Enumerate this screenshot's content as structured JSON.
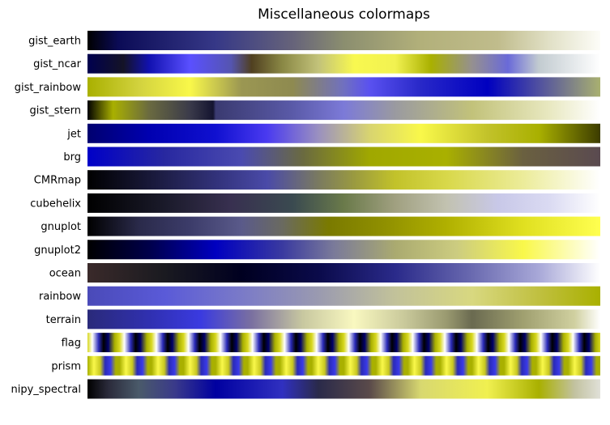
{
  "chart_data": {
    "type": "heatmap",
    "title": "Miscellaneous colormaps",
    "xlabel": "",
    "ylabel": "",
    "grid": false,
    "colormaps": [
      {
        "name": "gist_earth",
        "stops": [
          [
            0,
            "#000000"
          ],
          [
            0.06,
            "#0b0b56"
          ],
          [
            0.25,
            "#363887"
          ],
          [
            0.4,
            "#66637a"
          ],
          [
            0.5,
            "#8b8e6f"
          ],
          [
            0.65,
            "#b2b07a"
          ],
          [
            0.8,
            "#c0bc8c"
          ],
          [
            0.9,
            "#e1e0c6"
          ],
          [
            1,
            "#fdfdf8"
          ]
        ]
      },
      {
        "name": "gist_ncar",
        "stops": [
          [
            0,
            "#00004f"
          ],
          [
            0.07,
            "#141326"
          ],
          [
            0.12,
            "#1111b0"
          ],
          [
            0.2,
            "#5a50ff"
          ],
          [
            0.28,
            "#5555b0"
          ],
          [
            0.32,
            "#504020"
          ],
          [
            0.38,
            "#8a8845"
          ],
          [
            0.45,
            "#c2c27a"
          ],
          [
            0.52,
            "#f8f850"
          ],
          [
            0.6,
            "#f2f251"
          ],
          [
            0.67,
            "#a9b000"
          ],
          [
            0.75,
            "#959090"
          ],
          [
            0.82,
            "#6a6ad8"
          ],
          [
            0.88,
            "#c2cbd0"
          ],
          [
            1,
            "#ffffff"
          ]
        ]
      },
      {
        "name": "gist_rainbow",
        "stops": [
          [
            0,
            "#a9b000"
          ],
          [
            0.1,
            "#d2d23e"
          ],
          [
            0.2,
            "#f9f84a"
          ],
          [
            0.3,
            "#9b9752"
          ],
          [
            0.4,
            "#8e8a50"
          ],
          [
            0.5,
            "#7070c0"
          ],
          [
            0.55,
            "#5a51f0"
          ],
          [
            0.65,
            "#2828c8"
          ],
          [
            0.78,
            "#0000c0"
          ],
          [
            0.88,
            "#5050a0"
          ],
          [
            1,
            "#a9b070"
          ]
        ]
      },
      {
        "name": "gist_stern",
        "stops": [
          [
            0,
            "#000000"
          ],
          [
            0.05,
            "#a9b000"
          ],
          [
            0.12,
            "#6a6a40"
          ],
          [
            0.2,
            "#3a3a4a"
          ],
          [
            0.245,
            "#141430"
          ],
          [
            0.25,
            "#3a3a70"
          ],
          [
            0.4,
            "#5a5aa8"
          ],
          [
            0.5,
            "#7c7ad8"
          ],
          [
            0.6,
            "#9a9aa0"
          ],
          [
            0.75,
            "#c2c27a"
          ],
          [
            0.9,
            "#e8e8c0"
          ],
          [
            1,
            "#ffffff"
          ]
        ]
      },
      {
        "name": "jet",
        "stops": [
          [
            0,
            "#00006f"
          ],
          [
            0.12,
            "#0000b0"
          ],
          [
            0.25,
            "#1010d0"
          ],
          [
            0.35,
            "#4a3af0"
          ],
          [
            0.45,
            "#9a90c0"
          ],
          [
            0.55,
            "#d8d470"
          ],
          [
            0.65,
            "#f9f84a"
          ],
          [
            0.78,
            "#c2c22a"
          ],
          [
            0.88,
            "#a9b000"
          ],
          [
            1,
            "#3c3c00"
          ]
        ]
      },
      {
        "name": "brg",
        "stops": [
          [
            0,
            "#0000c8"
          ],
          [
            0.15,
            "#2828a0"
          ],
          [
            0.3,
            "#4a4ab0"
          ],
          [
            0.42,
            "#6a6a40"
          ],
          [
            0.55,
            "#a0a800"
          ],
          [
            0.7,
            "#a9b000"
          ],
          [
            0.85,
            "#6a6040"
          ],
          [
            1,
            "#5a4a50"
          ]
        ]
      },
      {
        "name": "CMRmap",
        "stops": [
          [
            0,
            "#000000"
          ],
          [
            0.12,
            "#181838"
          ],
          [
            0.25,
            "#32327a"
          ],
          [
            0.35,
            "#4a4aa8"
          ],
          [
            0.45,
            "#7a7a60"
          ],
          [
            0.52,
            "#9a9a40"
          ],
          [
            0.6,
            "#c2c22a"
          ],
          [
            0.7,
            "#d8d84a"
          ],
          [
            0.85,
            "#ecec9a"
          ],
          [
            1,
            "#ffffff"
          ]
        ]
      },
      {
        "name": "cubehelix",
        "stops": [
          [
            0,
            "#000000"
          ],
          [
            0.15,
            "#1a1a2a"
          ],
          [
            0.28,
            "#383050"
          ],
          [
            0.4,
            "#3a4a50"
          ],
          [
            0.5,
            "#6a7a4a"
          ],
          [
            0.6,
            "#a0a080"
          ],
          [
            0.7,
            "#c2c2b0"
          ],
          [
            0.8,
            "#c8c8e8"
          ],
          [
            0.9,
            "#dadaf2"
          ],
          [
            1,
            "#ffffff"
          ]
        ]
      },
      {
        "name": "gnuplot",
        "stops": [
          [
            0,
            "#000000"
          ],
          [
            0.1,
            "#2a2a4a"
          ],
          [
            0.2,
            "#3c3c6a"
          ],
          [
            0.3,
            "#5a5a8a"
          ],
          [
            0.38,
            "#6a6a60"
          ],
          [
            0.47,
            "#7a7a00"
          ],
          [
            0.58,
            "#909000"
          ],
          [
            0.7,
            "#b0b000"
          ],
          [
            0.85,
            "#e0e020"
          ],
          [
            1,
            "#ffff50"
          ]
        ]
      },
      {
        "name": "gnuplot2",
        "stops": [
          [
            0,
            "#000000"
          ],
          [
            0.12,
            "#00004a"
          ],
          [
            0.25,
            "#0000c0"
          ],
          [
            0.38,
            "#3a3aa0"
          ],
          [
            0.48,
            "#7a7a9a"
          ],
          [
            0.6,
            "#aaaa70"
          ],
          [
            0.72,
            "#cccc80"
          ],
          [
            0.85,
            "#f9f84a"
          ],
          [
            1,
            "#ffffff"
          ]
        ]
      },
      {
        "name": "ocean",
        "stops": [
          [
            0,
            "#3a2a2a"
          ],
          [
            0.15,
            "#1a1a20"
          ],
          [
            0.3,
            "#000020"
          ],
          [
            0.45,
            "#0a0a4a"
          ],
          [
            0.6,
            "#2a2a8a"
          ],
          [
            0.75,
            "#6a6ab0"
          ],
          [
            0.88,
            "#a8a8d8"
          ],
          [
            1,
            "#ffffff"
          ]
        ]
      },
      {
        "name": "rainbow",
        "stops": [
          [
            0,
            "#4a4ab8"
          ],
          [
            0.15,
            "#5a5ad8"
          ],
          [
            0.3,
            "#7a7ac8"
          ],
          [
            0.45,
            "#9a9ab0"
          ],
          [
            0.6,
            "#c2c29a"
          ],
          [
            0.75,
            "#d8d880"
          ],
          [
            0.88,
            "#c0c040"
          ],
          [
            1,
            "#a9b000"
          ]
        ]
      },
      {
        "name": "terrain",
        "stops": [
          [
            0,
            "#2a2a7a"
          ],
          [
            0.12,
            "#3030b0"
          ],
          [
            0.22,
            "#3a3ae0"
          ],
          [
            0.32,
            "#7a70a0"
          ],
          [
            0.42,
            "#c8c8a0"
          ],
          [
            0.52,
            "#f9f8c0"
          ],
          [
            0.62,
            "#c8c89a"
          ],
          [
            0.7,
            "#9a9a70"
          ],
          [
            0.75,
            "#6a6a50"
          ],
          [
            0.85,
            "#a0a070"
          ],
          [
            0.95,
            "#d0d0a0"
          ],
          [
            1,
            "#ffffff"
          ]
        ]
      },
      {
        "name": "flag",
        "stops": [],
        "pattern": "flag"
      },
      {
        "name": "prism",
        "stops": [],
        "pattern": "prism"
      },
      {
        "name": "nipy_spectral",
        "stops": [
          [
            0,
            "#000000"
          ],
          [
            0.04,
            "#2a2a3a"
          ],
          [
            0.1,
            "#4a5a6a"
          ],
          [
            0.17,
            "#3a3a8a"
          ],
          [
            0.25,
            "#0000a0"
          ],
          [
            0.38,
            "#3030c0"
          ],
          [
            0.45,
            "#2a2a4a"
          ],
          [
            0.55,
            "#5a4a4a"
          ],
          [
            0.65,
            "#d8d870"
          ],
          [
            0.78,
            "#f0f050"
          ],
          [
            0.88,
            "#a9b000"
          ],
          [
            0.95,
            "#c2c2a0"
          ],
          [
            1,
            "#e0e0d8"
          ]
        ]
      }
    ]
  }
}
